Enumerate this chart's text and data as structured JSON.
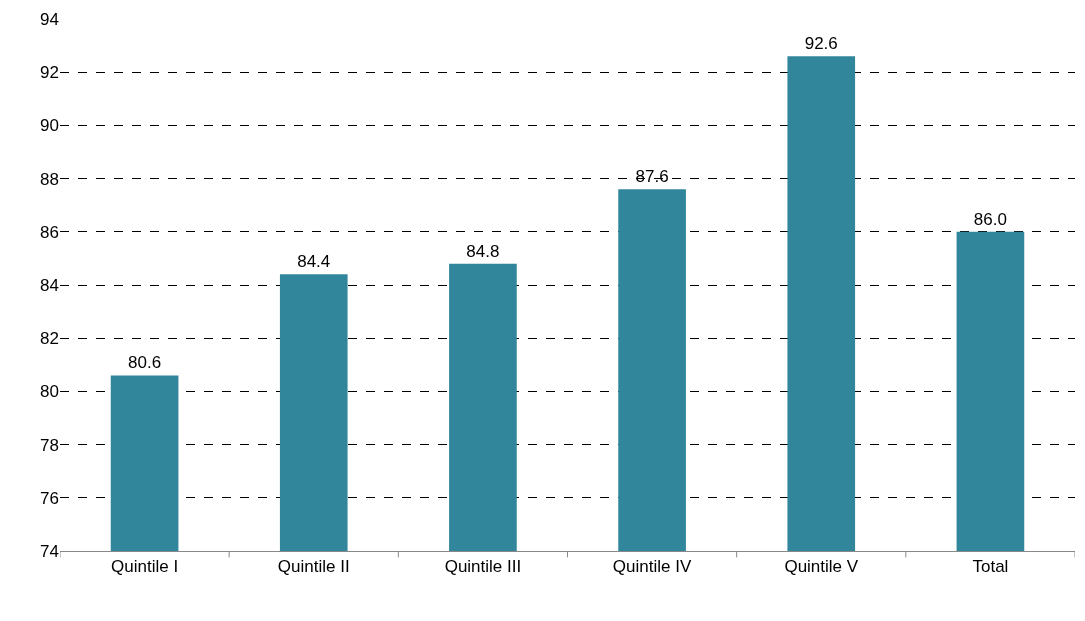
{
  "chart_data": {
    "type": "bar",
    "categories": [
      "Quintile I",
      "Quintile II",
      "Quintile III",
      "Quintile IV",
      "Quintile V",
      "Total"
    ],
    "values": [
      80.6,
      84.4,
      84.8,
      87.6,
      92.6,
      86.0
    ],
    "value_labels": [
      "80.6",
      "84.4",
      "84.8",
      "87.6",
      "92.6",
      "86.0"
    ],
    "color": "#31869b",
    "ylim": [
      74,
      94
    ],
    "yticks": [
      74,
      76,
      78,
      80,
      82,
      84,
      86,
      88,
      90,
      92,
      94
    ],
    "grid": "y"
  }
}
